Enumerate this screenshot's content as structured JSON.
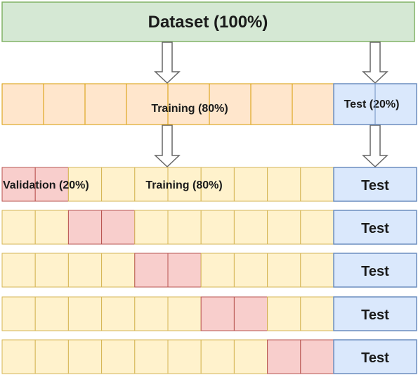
{
  "dataset": {
    "label": "Dataset (100%)"
  },
  "split": {
    "training_label": "Training (80%)",
    "test_label": "Test (20%)"
  },
  "folds": {
    "validation_label": "Validation (20%)",
    "training_label": "Training (80%)",
    "test_label": "Test",
    "count": 5,
    "cells_per_fold": 10,
    "validation_pairs": [
      [
        0,
        1
      ],
      [
        2,
        3
      ],
      [
        4,
        5
      ],
      [
        6,
        7
      ],
      [
        8,
        9
      ]
    ]
  },
  "colors": {
    "dataset_fill": "#d5e8d4",
    "dataset_stroke": "#82b366",
    "training_fill": "#ffe6cc",
    "training_stroke": "#d79b00",
    "fold_fill": "#fff2cc",
    "fold_stroke": "#d6b656",
    "validation_fill": "#f8cecc",
    "validation_stroke": "#b85450",
    "test_fill": "#dae8fc",
    "test_stroke": "#6c8ebf",
    "arrow_fill": "#ffffff",
    "arrow_stroke": "#666666"
  }
}
